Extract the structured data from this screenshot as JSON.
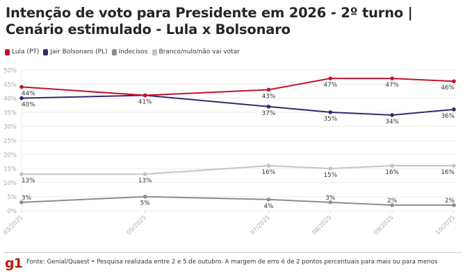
{
  "title": "Intenção de voto para Presidente em 2026 - 2º turno | Cenário estimulado - Lula x Bolsonaro",
  "legend": [
    {
      "label": "Lula (PT)",
      "color": "#c4122f"
    },
    {
      "label": "Jair Bolsonaro (PL)",
      "color": "#2b2d6e"
    },
    {
      "label": "Indecisos",
      "color": "#8c8c8c"
    },
    {
      "label": "Branco/nulo/não vai votar",
      "color": "#c4c4c4"
    }
  ],
  "footer": {
    "logo": "g1",
    "source": "Fonte: Genial/Quaest • Pesquisa realizada entre 2 e 5 de outubro. A margem de erro é de 2 pontos percentuais para mais ou para menos"
  },
  "chart_data": {
    "type": "line",
    "title": "Intenção de voto para Presidente em 2026 - 2º turno | Cenário estimulado - Lula x Bolsonaro",
    "xlabel": "",
    "ylabel": "",
    "x": [
      "03/2025",
      "05/2025",
      "07/2025",
      "08/2025",
      "09/2025",
      "10/2025"
    ],
    "x_month_index": [
      3,
      5,
      7,
      8,
      9,
      10
    ],
    "ylim": [
      0,
      50
    ],
    "yticks": [
      0,
      5,
      10,
      15,
      20,
      25,
      30,
      35,
      40,
      45,
      50
    ],
    "ytick_labels": [
      "0%",
      "5%",
      "10%",
      "15%",
      "20%",
      "25%",
      "30%",
      "35%",
      "40%",
      "45%",
      "50%"
    ],
    "grid": true,
    "legend_position": "top-left",
    "series": [
      {
        "name": "Lula (PT)",
        "color": "#c4122f",
        "values": [
          44,
          41,
          43,
          47,
          47,
          46
        ],
        "label_pos": [
          "below",
          "none",
          "below",
          "below",
          "below",
          "below"
        ]
      },
      {
        "name": "Jair Bolsonaro (PL)",
        "color": "#2b2d6e",
        "values": [
          40,
          41,
          37,
          35,
          34,
          36
        ],
        "label_pos": [
          "below",
          "below",
          "below",
          "below",
          "below",
          "below"
        ]
      },
      {
        "name": "Indecisos",
        "color": "#8c8c8c",
        "values": [
          3,
          5,
          4,
          3,
          2,
          2
        ],
        "label_pos": [
          "above",
          "below",
          "below",
          "above",
          "above",
          "above"
        ]
      },
      {
        "name": "Branco/nulo/não vai votar",
        "color": "#c4c4c4",
        "values": [
          13,
          13,
          16,
          15,
          16,
          16
        ],
        "label_pos": [
          "below",
          "below",
          "below",
          "below",
          "below",
          "below"
        ]
      }
    ]
  }
}
